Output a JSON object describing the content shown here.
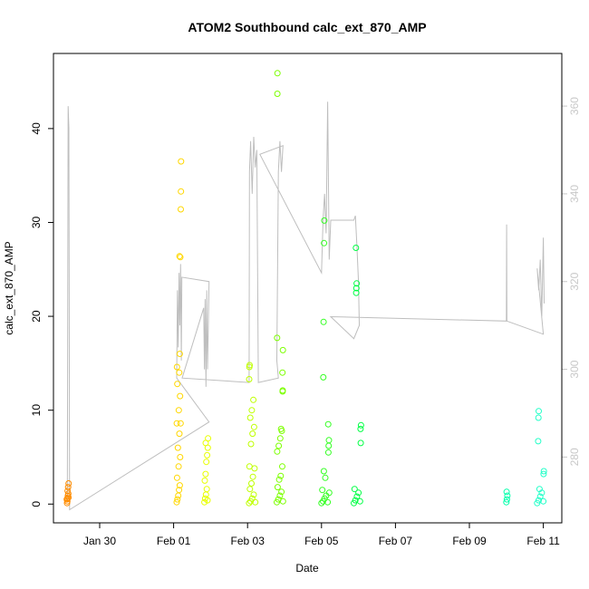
{
  "chart_data": {
    "type": "scatter",
    "title": "ATOM2 Southbound calc_ext_870_AMP",
    "xlabel": "Date",
    "ylabel": "calc_ext_870_AMP",
    "x_range": [
      "2020-01-28T18:00",
      "2020-02-11T12:00"
    ],
    "ylim": [
      -2,
      48
    ],
    "y2lim": [
      265,
      372
    ],
    "x_ticks": [
      {
        "date": "2020-01-30",
        "label": "Jan 30"
      },
      {
        "date": "2020-02-01",
        "label": "Feb 01"
      },
      {
        "date": "2020-02-03",
        "label": "Feb 03"
      },
      {
        "date": "2020-02-05",
        "label": "Feb 05"
      },
      {
        "date": "2020-02-07",
        "label": "Feb 07"
      },
      {
        "date": "2020-02-09",
        "label": "Feb 09"
      },
      {
        "date": "2020-02-11",
        "label": "Feb 11"
      }
    ],
    "y_ticks": [
      0,
      10,
      20,
      30,
      40
    ],
    "y2_ticks": [
      280,
      300,
      320,
      340,
      360
    ],
    "grid": false,
    "point_colors": [
      "#ff8c00",
      "#ffd700",
      "#e8ff00",
      "#bfff00",
      "#7cff00",
      "#33ff22",
      "#00ff44",
      "#00ffaa",
      "#22ffc8"
    ],
    "line_color": "#bebebe",
    "series": [
      {
        "values_note": "",
        "points": [
          {
            "x": "2020-01-29T03:00",
            "y": 0.3,
            "c": 0
          },
          {
            "x": "2020-01-29T03:00",
            "y": 0.6,
            "c": 0
          },
          {
            "x": "2020-01-29T03:20",
            "y": 0.9,
            "c": 0
          },
          {
            "x": "2020-01-29T03:40",
            "y": 1.1,
            "c": 0
          },
          {
            "x": "2020-01-29T02:40",
            "y": 0.5,
            "c": 0
          },
          {
            "x": "2020-01-29T03:10",
            "y": 1.4,
            "c": 0
          },
          {
            "x": "2020-01-29T03:30",
            "y": 1.8,
            "c": 0
          },
          {
            "x": "2020-01-29T03:50",
            "y": 2.2,
            "c": 0
          },
          {
            "x": "2020-01-29T02:50",
            "y": 0.1,
            "c": 0
          },
          {
            "x": "2020-01-29T03:45",
            "y": 0.7,
            "c": 0
          },
          {
            "x": "2020-02-01T02:00",
            "y": 0.2,
            "c": 1
          },
          {
            "x": "2020-02-01T02:30",
            "y": 0.5,
            "c": 1
          },
          {
            "x": "2020-02-01T03:00",
            "y": 0.9,
            "c": 1
          },
          {
            "x": "2020-02-01T03:30",
            "y": 1.5,
            "c": 1
          },
          {
            "x": "2020-02-01T04:00",
            "y": 2.0,
            "c": 1
          },
          {
            "x": "2020-02-01T02:15",
            "y": 2.8,
            "c": 1
          },
          {
            "x": "2020-02-01T03:15",
            "y": 4.0,
            "c": 1
          },
          {
            "x": "2020-02-01T04:15",
            "y": 5.0,
            "c": 1
          },
          {
            "x": "2020-02-01T02:45",
            "y": 6.0,
            "c": 1
          },
          {
            "x": "2020-02-01T03:45",
            "y": 7.5,
            "c": 1
          },
          {
            "x": "2020-02-01T02:05",
            "y": 8.6,
            "c": 1
          },
          {
            "x": "2020-02-01T04:30",
            "y": 8.6,
            "c": 1
          },
          {
            "x": "2020-02-01T03:20",
            "y": 10.0,
            "c": 1
          },
          {
            "x": "2020-02-01T04:10",
            "y": 11.5,
            "c": 1
          },
          {
            "x": "2020-02-01T02:25",
            "y": 12.8,
            "c": 1
          },
          {
            "x": "2020-02-01T03:40",
            "y": 14.0,
            "c": 1
          },
          {
            "x": "2020-02-01T02:10",
            "y": 14.6,
            "c": 1
          },
          {
            "x": "2020-02-01T04:00",
            "y": 16.0,
            "c": 1
          },
          {
            "x": "2020-02-01T03:50",
            "y": 26.4,
            "c": 1
          },
          {
            "x": "2020-02-01T04:20",
            "y": 26.3,
            "c": 1
          },
          {
            "x": "2020-02-01T04:40",
            "y": 31.4,
            "c": 1
          },
          {
            "x": "2020-02-01T04:45",
            "y": 33.3,
            "c": 1
          },
          {
            "x": "2020-02-01T04:50",
            "y": 36.5,
            "c": 1
          },
          {
            "x": "2020-02-01T20:00",
            "y": 0.2,
            "c": 2
          },
          {
            "x": "2020-02-01T20:30",
            "y": 0.6,
            "c": 2
          },
          {
            "x": "2020-02-01T21:00",
            "y": 1.0,
            "c": 2
          },
          {
            "x": "2020-02-01T21:30",
            "y": 1.6,
            "c": 2
          },
          {
            "x": "2020-02-01T22:00",
            "y": 0.4,
            "c": 2
          },
          {
            "x": "2020-02-01T20:15",
            "y": 2.5,
            "c": 2
          },
          {
            "x": "2020-02-01T20:45",
            "y": 3.2,
            "c": 2
          },
          {
            "x": "2020-02-01T21:15",
            "y": 4.5,
            "c": 2
          },
          {
            "x": "2020-02-01T21:45",
            "y": 5.2,
            "c": 2
          },
          {
            "x": "2020-02-01T22:10",
            "y": 6.0,
            "c": 2
          },
          {
            "x": "2020-02-01T20:50",
            "y": 6.5,
            "c": 2
          },
          {
            "x": "2020-02-01T22:20",
            "y": 7.0,
            "c": 2
          },
          {
            "x": "2020-02-03T01:00",
            "y": 0.1,
            "c": 3
          },
          {
            "x": "2020-02-03T02:00",
            "y": 0.3,
            "c": 3
          },
          {
            "x": "2020-02-03T03:00",
            "y": 0.6,
            "c": 3
          },
          {
            "x": "2020-02-03T04:00",
            "y": 1.0,
            "c": 3
          },
          {
            "x": "2020-02-03T05:00",
            "y": 0.2,
            "c": 3
          },
          {
            "x": "2020-02-03T01:30",
            "y": 1.6,
            "c": 3
          },
          {
            "x": "2020-02-03T02:30",
            "y": 2.2,
            "c": 3
          },
          {
            "x": "2020-02-03T03:30",
            "y": 2.9,
            "c": 3
          },
          {
            "x": "2020-02-03T04:30",
            "y": 3.8,
            "c": 3
          },
          {
            "x": "2020-02-03T01:15",
            "y": 4.0,
            "c": 3
          },
          {
            "x": "2020-02-03T02:15",
            "y": 6.4,
            "c": 3
          },
          {
            "x": "2020-02-03T03:15",
            "y": 7.5,
            "c": 3
          },
          {
            "x": "2020-02-03T04:15",
            "y": 8.2,
            "c": 3
          },
          {
            "x": "2020-02-03T01:45",
            "y": 9.2,
            "c": 3
          },
          {
            "x": "2020-02-03T02:45",
            "y": 10.0,
            "c": 3
          },
          {
            "x": "2020-02-03T03:45",
            "y": 11.1,
            "c": 3
          },
          {
            "x": "2020-02-03T01:05",
            "y": 13.3,
            "c": 3
          },
          {
            "x": "2020-02-03T01:10",
            "y": 14.6,
            "c": 3
          },
          {
            "x": "2020-02-03T01:20",
            "y": 14.8,
            "c": 3
          },
          {
            "x": "2020-02-03T19:00",
            "y": 0.2,
            "c": 4
          },
          {
            "x": "2020-02-03T20:00",
            "y": 0.5,
            "c": 4
          },
          {
            "x": "2020-02-03T21:00",
            "y": 0.9,
            "c": 4
          },
          {
            "x": "2020-02-03T22:00",
            "y": 1.3,
            "c": 4
          },
          {
            "x": "2020-02-03T23:00",
            "y": 0.3,
            "c": 4
          },
          {
            "x": "2020-02-03T19:30",
            "y": 1.8,
            "c": 4
          },
          {
            "x": "2020-02-03T20:30",
            "y": 2.6,
            "c": 4
          },
          {
            "x": "2020-02-03T21:30",
            "y": 3.0,
            "c": 4
          },
          {
            "x": "2020-02-03T22:30",
            "y": 4.0,
            "c": 4
          },
          {
            "x": "2020-02-03T19:15",
            "y": 5.6,
            "c": 4
          },
          {
            "x": "2020-02-03T20:15",
            "y": 6.2,
            "c": 4
          },
          {
            "x": "2020-02-03T21:15",
            "y": 7.0,
            "c": 4
          },
          {
            "x": "2020-02-03T22:15",
            "y": 7.8,
            "c": 4
          },
          {
            "x": "2020-02-03T21:45",
            "y": 8.0,
            "c": 4
          },
          {
            "x": "2020-02-03T22:45",
            "y": 12.0,
            "c": 4
          },
          {
            "x": "2020-02-03T22:50",
            "y": 12.1,
            "c": 4
          },
          {
            "x": "2020-02-03T22:40",
            "y": 14.0,
            "c": 4
          },
          {
            "x": "2020-02-03T22:55",
            "y": 16.4,
            "c": 4
          },
          {
            "x": "2020-02-03T19:10",
            "y": 17.7,
            "c": 4
          },
          {
            "x": "2020-02-03T19:20",
            "y": 43.7,
            "c": 4
          },
          {
            "x": "2020-02-03T19:25",
            "y": 45.9,
            "c": 4
          },
          {
            "x": "2020-02-05T00:00",
            "y": 0.1,
            "c": 5
          },
          {
            "x": "2020-02-05T01:00",
            "y": 0.3,
            "c": 5
          },
          {
            "x": "2020-02-05T02:00",
            "y": 0.6,
            "c": 5
          },
          {
            "x": "2020-02-05T03:00",
            "y": 0.9,
            "c": 5
          },
          {
            "x": "2020-02-05T04:00",
            "y": 0.2,
            "c": 5
          },
          {
            "x": "2020-02-05T05:00",
            "y": 1.2,
            "c": 5
          },
          {
            "x": "2020-02-05T00:30",
            "y": 1.5,
            "c": 5
          },
          {
            "x": "2020-02-05T02:30",
            "y": 2.8,
            "c": 5
          },
          {
            "x": "2020-02-05T01:30",
            "y": 3.5,
            "c": 5
          },
          {
            "x": "2020-02-05T04:30",
            "y": 5.5,
            "c": 5
          },
          {
            "x": "2020-02-05T04:40",
            "y": 6.2,
            "c": 5
          },
          {
            "x": "2020-02-05T04:50",
            "y": 6.8,
            "c": 5
          },
          {
            "x": "2020-02-05T04:20",
            "y": 8.5,
            "c": 5
          },
          {
            "x": "2020-02-05T01:10",
            "y": 13.5,
            "c": 5
          },
          {
            "x": "2020-02-05T01:20",
            "y": 19.4,
            "c": 5
          },
          {
            "x": "2020-02-05T01:40",
            "y": 27.8,
            "c": 5
          },
          {
            "x": "2020-02-05T01:50",
            "y": 30.2,
            "c": 5
          },
          {
            "x": "2020-02-05T21:00",
            "y": 0.1,
            "c": 6
          },
          {
            "x": "2020-02-05T22:00",
            "y": 0.4,
            "c": 6
          },
          {
            "x": "2020-02-05T23:00",
            "y": 0.8,
            "c": 6
          },
          {
            "x": "2020-02-06T00:00",
            "y": 1.2,
            "c": 6
          },
          {
            "x": "2020-02-06T01:00",
            "y": 0.3,
            "c": 6
          },
          {
            "x": "2020-02-05T21:30",
            "y": 1.6,
            "c": 6
          },
          {
            "x": "2020-02-06T01:30",
            "y": 6.5,
            "c": 6
          },
          {
            "x": "2020-02-06T01:20",
            "y": 8.0,
            "c": 6
          },
          {
            "x": "2020-02-06T01:40",
            "y": 8.4,
            "c": 6
          },
          {
            "x": "2020-02-05T22:30",
            "y": 22.5,
            "c": 6
          },
          {
            "x": "2020-02-05T22:40",
            "y": 23.0,
            "c": 6
          },
          {
            "x": "2020-02-05T22:50",
            "y": 23.5,
            "c": 6
          },
          {
            "x": "2020-02-05T22:20",
            "y": 27.3,
            "c": 6
          },
          {
            "x": "2020-02-10T00:00",
            "y": 0.2,
            "c": 7
          },
          {
            "x": "2020-02-10T00:20",
            "y": 0.5,
            "c": 7
          },
          {
            "x": "2020-02-10T00:40",
            "y": 0.9,
            "c": 7
          },
          {
            "x": "2020-02-10T00:10",
            "y": 1.3,
            "c": 7
          },
          {
            "x": "2020-02-10T20:00",
            "y": 0.1,
            "c": 8
          },
          {
            "x": "2020-02-10T21:00",
            "y": 0.4,
            "c": 8
          },
          {
            "x": "2020-02-10T22:00",
            "y": 0.8,
            "c": 8
          },
          {
            "x": "2020-02-10T23:00",
            "y": 1.2,
            "c": 8
          },
          {
            "x": "2020-02-11T00:00",
            "y": 0.3,
            "c": 8
          },
          {
            "x": "2020-02-10T21:30",
            "y": 1.6,
            "c": 8
          },
          {
            "x": "2020-02-10T20:40",
            "y": 6.7,
            "c": 8
          },
          {
            "x": "2020-02-10T20:50",
            "y": 9.2,
            "c": 8
          },
          {
            "x": "2020-02-10T21:00",
            "y": 9.9,
            "c": 8
          },
          {
            "x": "2020-02-11T00:10",
            "y": 3.2,
            "c": 8
          },
          {
            "x": "2020-02-11T00:20",
            "y": 3.5,
            "c": 8
          }
        ]
      },
      {
        "axis": "right",
        "line": [
          [
            "2020-01-29T03:00",
            270
          ],
          [
            "2020-01-29T03:30",
            360
          ],
          [
            "2020-01-29T04:00",
            355
          ],
          [
            "2020-01-29T04:30",
            268
          ],
          [
            "2020-02-01T23:00",
            288
          ],
          [
            "2020-02-01T02:00",
            298
          ],
          [
            "2020-02-01T02:30",
            318
          ],
          [
            "2020-02-01T03:00",
            305
          ],
          [
            "2020-02-01T03:30",
            322
          ],
          [
            "2020-02-01T04:00",
            310
          ],
          [
            "2020-02-01T04:30",
            324
          ],
          [
            "2020-02-01T05:00",
            302
          ],
          [
            "2020-02-01T05:20",
            321
          ],
          [
            "2020-02-01T23:00",
            320
          ],
          [
            "2020-02-01T22:30",
            310
          ],
          [
            "2020-02-01T22:00",
            300
          ],
          [
            "2020-02-01T21:30",
            318
          ],
          [
            "2020-02-01T21:00",
            296
          ],
          [
            "2020-02-01T20:30",
            316
          ],
          [
            "2020-02-01T20:00",
            300
          ],
          [
            "2020-02-01T19:30",
            314
          ],
          [
            "2020-02-01T05:30",
            298
          ],
          [
            "2020-02-03T01:00",
            297
          ],
          [
            "2020-02-03T01:15",
            345
          ],
          [
            "2020-02-03T02:00",
            352
          ],
          [
            "2020-02-03T03:00",
            340
          ],
          [
            "2020-02-03T04:00",
            353
          ],
          [
            "2020-02-03T05:00",
            346
          ],
          [
            "2020-02-03T06:00",
            350
          ],
          [
            "2020-02-03T07:00",
            297
          ],
          [
            "2020-02-03T20:00",
            298
          ],
          [
            "2020-02-03T19:00",
            302
          ],
          [
            "2020-02-03T20:00",
            345
          ],
          [
            "2020-02-03T21:00",
            352
          ],
          [
            "2020-02-03T22:00",
            345
          ],
          [
            "2020-02-03T23:00",
            351
          ],
          [
            "2020-02-03T08:00",
            349
          ],
          [
            "2020-02-05T00:00",
            322
          ],
          [
            "2020-02-05T01:00",
            334
          ],
          [
            "2020-02-05T02:00",
            340
          ],
          [
            "2020-02-05T03:00",
            331
          ],
          [
            "2020-02-05T04:00",
            361
          ],
          [
            "2020-02-05T05:00",
            325
          ],
          [
            "2020-02-05T06:00",
            334
          ],
          [
            "2020-02-05T21:00",
            334
          ],
          [
            "2020-02-05T22:00",
            335
          ],
          [
            "2020-02-05T23:00",
            328
          ],
          [
            "2020-02-06T00:00",
            320
          ],
          [
            "2020-02-06T00:30",
            310
          ],
          [
            "2020-02-05T21:00",
            307
          ],
          [
            "2020-02-05T06:00",
            312
          ],
          [
            "2020-02-10T00:00",
            311
          ],
          [
            "2020-02-10T00:10",
            333
          ],
          [
            "2020-02-10T00:20",
            311
          ],
          [
            "2020-02-11T00:00",
            308
          ],
          [
            "2020-02-10T20:00",
            323
          ],
          [
            "2020-02-10T21:00",
            318
          ],
          [
            "2020-02-10T22:00",
            325
          ],
          [
            "2020-02-10T23:00",
            312
          ],
          [
            "2020-02-11T00:00",
            330
          ],
          [
            "2020-02-11T00:30",
            315
          ]
        ]
      }
    ]
  }
}
